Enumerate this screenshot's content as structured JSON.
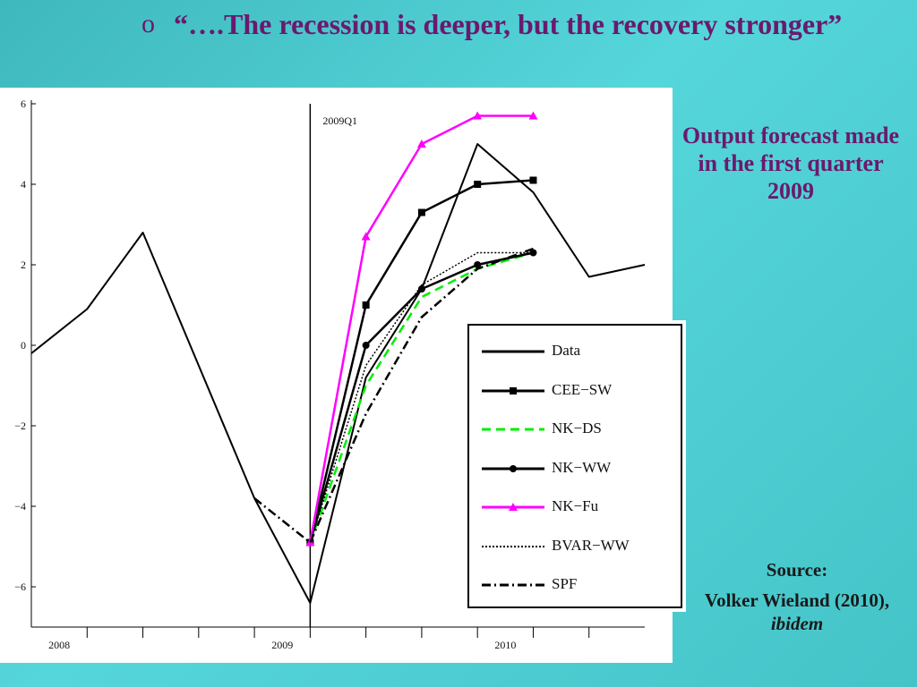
{
  "slide": {
    "bullet": "o",
    "title": "“….The recession is deeper, but the recovery stronger”",
    "side_note": "Output forecast made in the first quarter 2009",
    "source_label": "Source:",
    "source_author": "Volker Wieland (2010), ",
    "source_ital": "ibidem"
  },
  "colors": {
    "title": "#6a1a6e",
    "background": "#4ccfd3",
    "nk_fu": "#ff00ff",
    "nk_ds": "#00ee00"
  },
  "chart_data": {
    "type": "line",
    "title": "",
    "xlabel": "",
    "ylabel": "",
    "ylim": [
      -7,
      6
    ],
    "yticks": [
      6,
      4,
      2,
      0,
      -2,
      -4,
      -6
    ],
    "xlim": [
      0,
      11
    ],
    "xticks": [
      {
        "pos": 0.5,
        "label": "2008"
      },
      {
        "pos": 4.5,
        "label": "2009"
      },
      {
        "pos": 8.5,
        "label": "2010"
      }
    ],
    "annotation": {
      "x": 5,
      "label": "2009Q1"
    },
    "series": [
      {
        "name": "Data",
        "style": "solid",
        "color": "#000000",
        "marker": "none",
        "points": [
          [
            0,
            -0.2
          ],
          [
            1,
            0.9
          ],
          [
            2,
            2.8
          ],
          [
            3,
            -0.5
          ],
          [
            4,
            -3.8
          ],
          [
            5,
            -6.4
          ],
          [
            6,
            -0.8
          ],
          [
            7,
            1.4
          ],
          [
            8,
            5.0
          ],
          [
            9,
            3.8
          ],
          [
            10,
            1.7
          ],
          [
            11,
            2.0
          ]
        ]
      },
      {
        "name": "CEE−SW",
        "style": "solid",
        "color": "#000000",
        "marker": "square",
        "points": [
          [
            5,
            -4.9
          ],
          [
            6,
            1.0
          ],
          [
            7,
            3.3
          ],
          [
            8,
            4.0
          ],
          [
            9,
            4.1
          ]
        ]
      },
      {
        "name": "NK−DS",
        "style": "dashed",
        "color": "#00ee00",
        "marker": "none",
        "points": [
          [
            5,
            -4.9
          ],
          [
            6,
            -1.0
          ],
          [
            7,
            1.2
          ],
          [
            8,
            1.9
          ],
          [
            9,
            2.3
          ]
        ]
      },
      {
        "name": "NK−WW",
        "style": "solid",
        "color": "#000000",
        "marker": "circle",
        "points": [
          [
            5,
            -4.9
          ],
          [
            6,
            0.0
          ],
          [
            7,
            1.4
          ],
          [
            8,
            2.0
          ],
          [
            9,
            2.3
          ]
        ]
      },
      {
        "name": "NK−Fu",
        "style": "solid",
        "color": "#ff00ff",
        "marker": "triangle",
        "points": [
          [
            5,
            -4.9
          ],
          [
            6,
            2.7
          ],
          [
            7,
            5.0
          ],
          [
            8,
            5.7
          ],
          [
            9,
            5.7
          ]
        ]
      },
      {
        "name": "BVAR−WW",
        "style": "dotted",
        "color": "#000000",
        "marker": "none",
        "points": [
          [
            5,
            -4.9
          ],
          [
            6,
            -0.5
          ],
          [
            7,
            1.5
          ],
          [
            8,
            2.3
          ],
          [
            9,
            2.3
          ]
        ]
      },
      {
        "name": "SPF",
        "style": "dashdot",
        "color": "#000000",
        "marker": "none",
        "points": [
          [
            4,
            -3.8
          ],
          [
            5,
            -4.9
          ],
          [
            6,
            -1.7
          ],
          [
            7,
            0.7
          ],
          [
            8,
            1.9
          ],
          [
            9,
            2.4
          ]
        ]
      }
    ],
    "legend_position": "bottom-right"
  }
}
